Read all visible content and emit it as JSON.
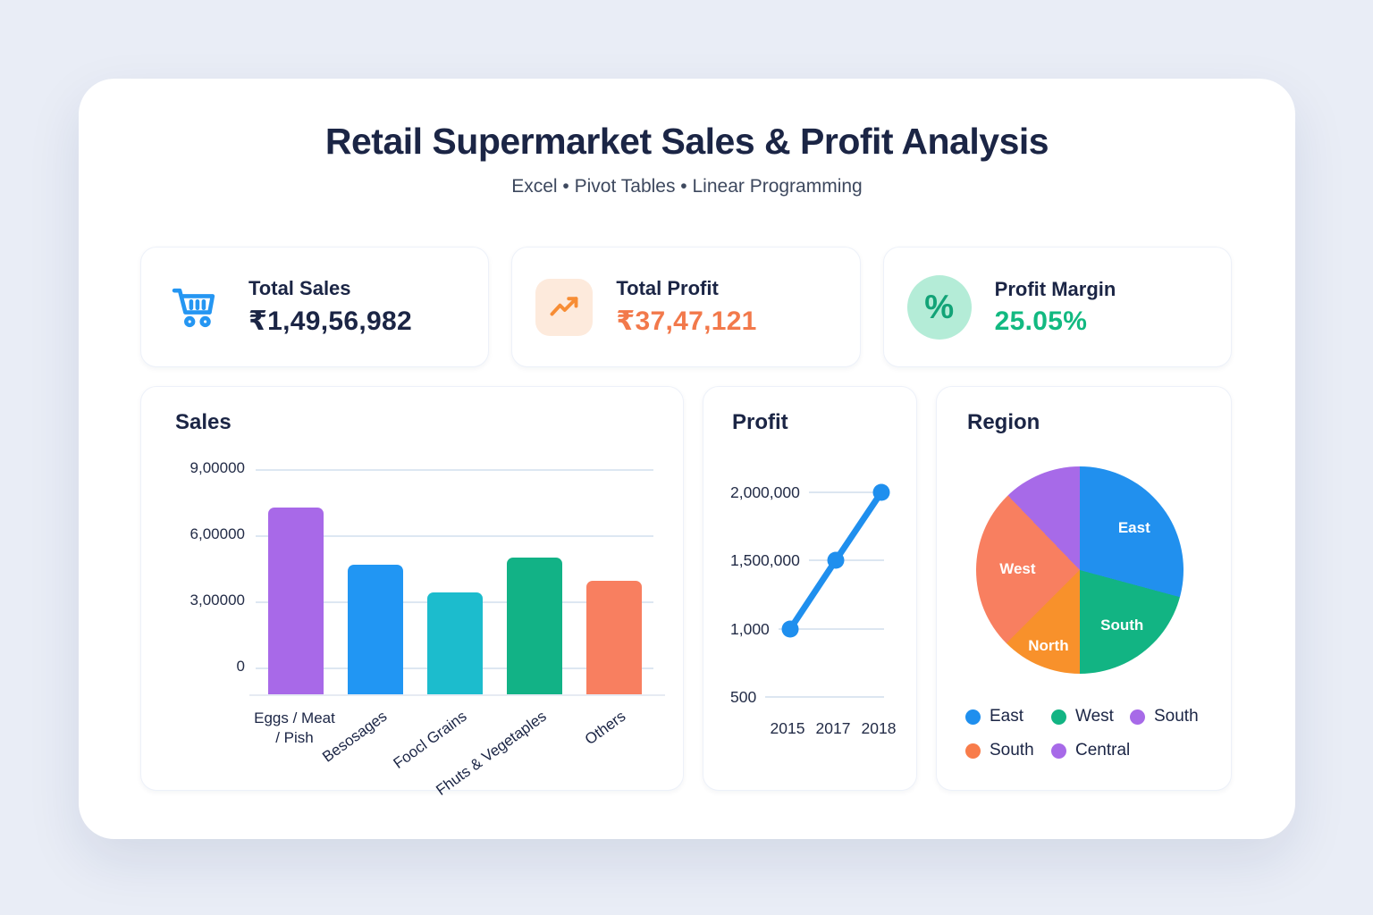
{
  "header": {
    "title": "Retail Supermarket Sales & Profit Analysis",
    "subtitle": "Excel • Pivot Tables • Linear Programming"
  },
  "kpis": [
    {
      "label": "Total Sales",
      "value": "₹1,49,56,982",
      "icon": "shopping-cart-icon",
      "accent": "#2596f2",
      "value_color": "#1b2545",
      "icon_bg": "transparent"
    },
    {
      "label": "Total Profit",
      "value": "₹37,47,121",
      "icon": "trending-up-icon",
      "accent": "#f78d35",
      "value_color": "#f2794b",
      "icon_bg": "#fdeadc"
    },
    {
      "label": "Profit Margin",
      "value": "25.05%",
      "icon": "percent-icon",
      "accent": "#12a377",
      "value_color": "#12b981",
      "icon_bg": "#b4ecd7"
    }
  ],
  "chart_data": [
    {
      "type": "bar",
      "title": "Sales",
      "categories": [
        "Eggs / Meat / Pish",
        "Besosages",
        "Foocl Grains",
        "Fhuts & Vegetaples",
        "Others"
      ],
      "values": [
        725000,
        465000,
        340000,
        500000,
        395000
      ],
      "bar_colors": [
        "#a869e8",
        "#2196f3",
        "#1cbccd",
        "#12b286",
        "#f87f60"
      ],
      "ytick_labels": [
        "9,00000",
        "6,00000",
        "3,00000",
        "0"
      ],
      "ytick_values": [
        900000,
        600000,
        300000,
        0
      ],
      "ylim": [
        -120000,
        900000
      ],
      "grid": true,
      "xlabel": "",
      "ylabel": ""
    },
    {
      "type": "line",
      "title": "Profit",
      "x": [
        "2015",
        "2017",
        "2018"
      ],
      "values": [
        1000,
        1500000,
        2000000
      ],
      "ytick_labels": [
        "2,000,000",
        "1,500,000",
        "1,000",
        "500"
      ],
      "ytick_values": [
        2000000,
        1500000,
        1000,
        500
      ],
      "line_color": "#1f8fee",
      "grid": true
    },
    {
      "type": "pie",
      "title": "Region",
      "slices": [
        {
          "label": "East",
          "value": 29.2,
          "color": "#2190ee"
        },
        {
          "label": "South",
          "value": 20.8,
          "color": "#12b483"
        },
        {
          "label": "North",
          "value": 12.5,
          "color": "#f8912b"
        },
        {
          "label": "West",
          "value": 25.3,
          "color": "#f87f60"
        },
        {
          "label": "",
          "value": 12.2,
          "color": "#a76ae8"
        }
      ],
      "legend": [
        {
          "label": "East",
          "color": "#1f8fee"
        },
        {
          "label": "West",
          "color": "#12b483"
        },
        {
          "label": "South",
          "color": "#a76ae8"
        },
        {
          "label": "South",
          "color": "#f87c4a"
        },
        {
          "label": "Central",
          "color": "#a76ae8"
        }
      ],
      "legend_position": "bottom"
    }
  ]
}
